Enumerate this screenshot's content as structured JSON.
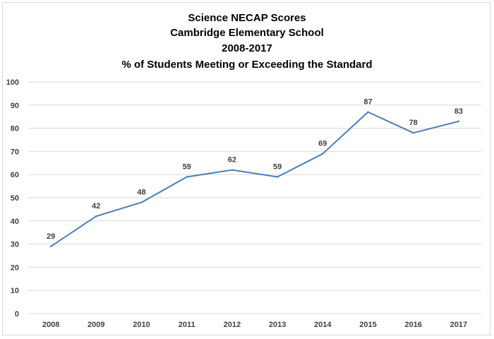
{
  "chart_data": {
    "type": "line",
    "title": [
      "Science NECAP Scores",
      "Cambridge Elementary School",
      "2008-2017",
      "% of Students Meeting or Exceeding the Standard"
    ],
    "categories": [
      "2008",
      "2009",
      "2010",
      "2011",
      "2012",
      "2013",
      "2014",
      "2015",
      "2016",
      "2017"
    ],
    "series": [
      {
        "values": [
          29,
          42,
          48,
          59,
          62,
          59,
          69,
          87,
          78,
          83
        ],
        "color": "#4a7ebb"
      }
    ],
    "ylim": [
      0,
      100
    ],
    "yticks": [
      0,
      10,
      20,
      30,
      40,
      50,
      60,
      70,
      80,
      90,
      100
    ],
    "grid": true,
    "data_labels": true,
    "legend": "none"
  }
}
